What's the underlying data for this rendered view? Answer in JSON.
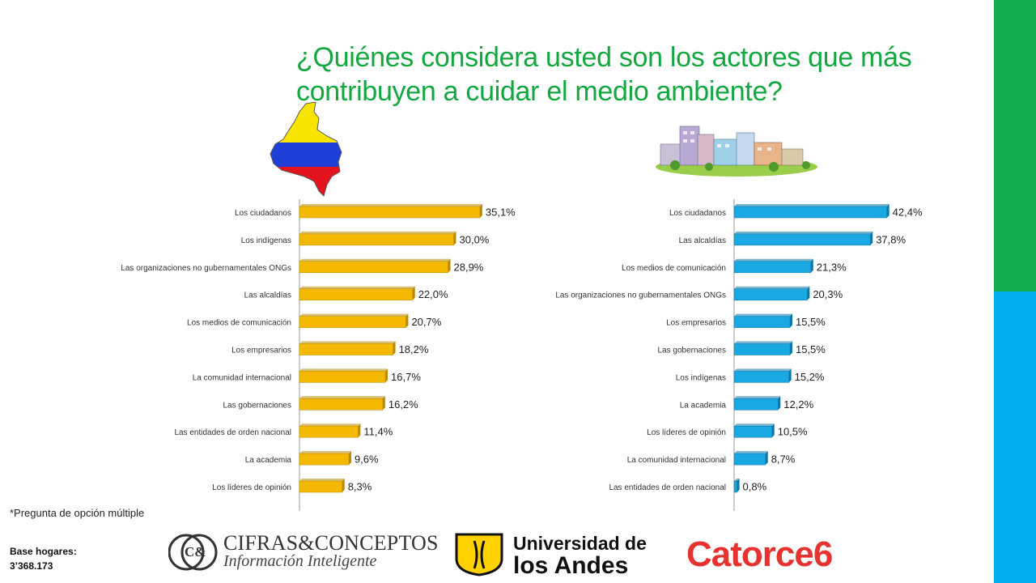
{
  "page": {
    "title": "¿Quiénes considera usted son los actores que más contribuyen a cuidar el medio ambiente?",
    "footnote": "*Pregunta de opción múltiple",
    "base_label": "Base hogares:",
    "base_value": "3’368.173"
  },
  "logos": {
    "cifras": {
      "name": "CIFRAS&CONCEPTOS",
      "tagline": "Información Inteligente",
      "mark": "C&"
    },
    "andes": {
      "line1": "Universidad de",
      "line2": "los Andes"
    },
    "catorce": {
      "name": "Catorce6"
    }
  },
  "colors": {
    "left_bar": "#f5b800",
    "left_bar_dark": "#b98a00",
    "right_bar": "#1aa8e3",
    "right_bar_dark": "#0a77a8",
    "title": "#12a73f",
    "side_green": "#12ad4f",
    "side_blue": "#00adef"
  },
  "icons": {
    "left": "colombia-flag-map-icon",
    "right": "city-buildings-icon"
  },
  "chart_data": [
    {
      "type": "bar",
      "orientation": "horizontal",
      "categories": [
        "Los ciudadanos",
        "Los indígenas",
        "Las organizaciones no gubernamentales ONGs",
        "Las alcaldías",
        "Los medios de comunicación",
        "Los empresarios",
        "La comunidad internacional",
        "Las gobernaciones",
        "Las entidades de orden nacional",
        "La academia",
        "Los líderes de opinión"
      ],
      "values": [
        35.1,
        30.0,
        28.9,
        22.0,
        20.7,
        18.2,
        16.7,
        16.2,
        11.4,
        9.6,
        8.3
      ],
      "value_labels": [
        "35,1%",
        "30,0%",
        "28,9%",
        "22,0%",
        "20,7%",
        "18,2%",
        "16,7%",
        "16,2%",
        "11,4%",
        "9,6%",
        "8,3%"
      ],
      "xlim": [
        0,
        50
      ],
      "grid": false,
      "legend": "none"
    },
    {
      "type": "bar",
      "orientation": "horizontal",
      "categories": [
        "Los ciudadanos",
        "Las alcaldías",
        "Los medios de comunicación",
        "Las organizaciones no gubernamentales ONGs",
        "Los empresarios",
        "Las gobernaciones",
        "Los indígenas",
        "La academia",
        "Los líderes de opinión",
        "La comunidad internacional",
        "Las entidades de orden nacional"
      ],
      "values": [
        42.4,
        37.8,
        21.3,
        20.3,
        15.5,
        15.5,
        15.2,
        12.2,
        10.5,
        8.7,
        0.8
      ],
      "value_labels": [
        "42,4%",
        "37,8%",
        "21,3%",
        "20,3%",
        "15,5%",
        "15,5%",
        "15,2%",
        "12,2%",
        "10,5%",
        "8,7%",
        "0,8%"
      ],
      "xlim": [
        0,
        50
      ],
      "grid": false,
      "legend": "none"
    }
  ]
}
